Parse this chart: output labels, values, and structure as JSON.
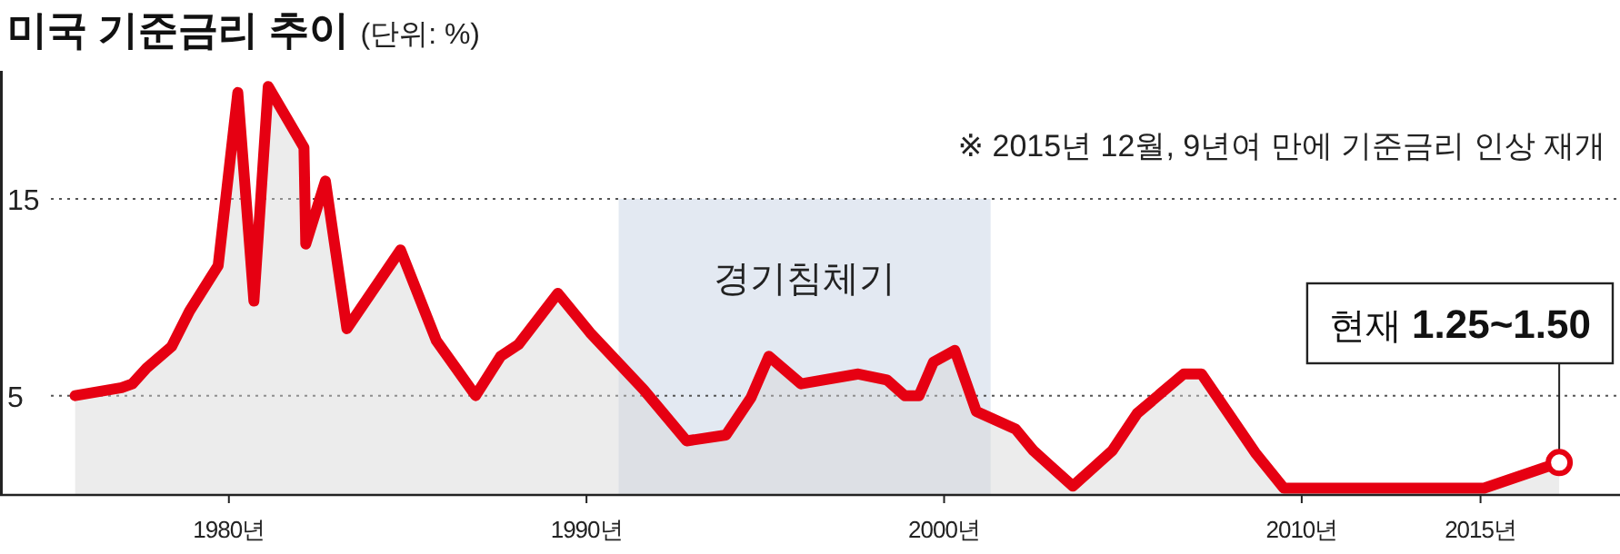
{
  "chart_data": {
    "type": "area",
    "title": "미국 기준금리 추이",
    "subtitle": "(단위: %)",
    "x": [
      1975.7,
      1977.0,
      1977.3,
      1977.7,
      1978.4,
      1978.9,
      1979.7,
      1980.25,
      1980.7,
      1981.1,
      1982.1,
      1982.15,
      1982.7,
      1983.3,
      1984.8,
      1985.8,
      1986.9,
      1987.6,
      1988.1,
      1989.2,
      1990.1,
      1991.6,
      1992.8,
      1993.9,
      1994.6,
      1995.1,
      1996.0,
      1997.6,
      1998.4,
      1998.9,
      1999.3,
      1999.7,
      2000.3,
      2000.9,
      2002.0,
      2002.5,
      2003.6,
      2004.7,
      2005.4,
      2006.7,
      2007.2,
      2008.7,
      2009.5,
      2015.1,
      2017.2
    ],
    "series": [
      {
        "color": "#e60012",
        "values": [
          5.0,
          5.4,
          5.6,
          6.4,
          7.5,
          9.3,
          11.6,
          20.4,
          9.8,
          20.7,
          17.6,
          12.7,
          15.9,
          8.4,
          12.4,
          7.8,
          5.0,
          7.0,
          7.6,
          10.2,
          8.2,
          5.3,
          2.7,
          3.0,
          4.9,
          7.0,
          5.6,
          6.1,
          5.8,
          5.0,
          5.0,
          6.7,
          7.3,
          4.2,
          3.3,
          2.2,
          0.4,
          2.2,
          4.1,
          6.1,
          6.1,
          2.1,
          0.3,
          0.3,
          1.6
        ]
      }
    ],
    "xlim": [
      1973.6,
      2018.9
    ],
    "xticks": [
      {
        "value": 1980,
        "label": "1980년"
      },
      {
        "value": 1990,
        "label": "1990년"
      },
      {
        "value": 2000,
        "label": "2000년"
      },
      {
        "value": 2010,
        "label": "2010년"
      },
      {
        "value": 2015,
        "label": "2015년"
      }
    ],
    "ylim": [
      0,
      21.5
    ],
    "yticks": [
      5,
      15
    ],
    "grid": "y",
    "bands": [
      {
        "axis": "x",
        "from": 1990.9,
        "to": 2001.3,
        "label": "경기침체기",
        "color": "#e3e9f2"
      }
    ],
    "annotations": [
      "※ 2015년 12월, 9년여 만에 기준금리 인상 재개",
      {
        "text": "현재 1.25~1.50",
        "x": 2017.2,
        "y": 1.6
      }
    ]
  }
}
